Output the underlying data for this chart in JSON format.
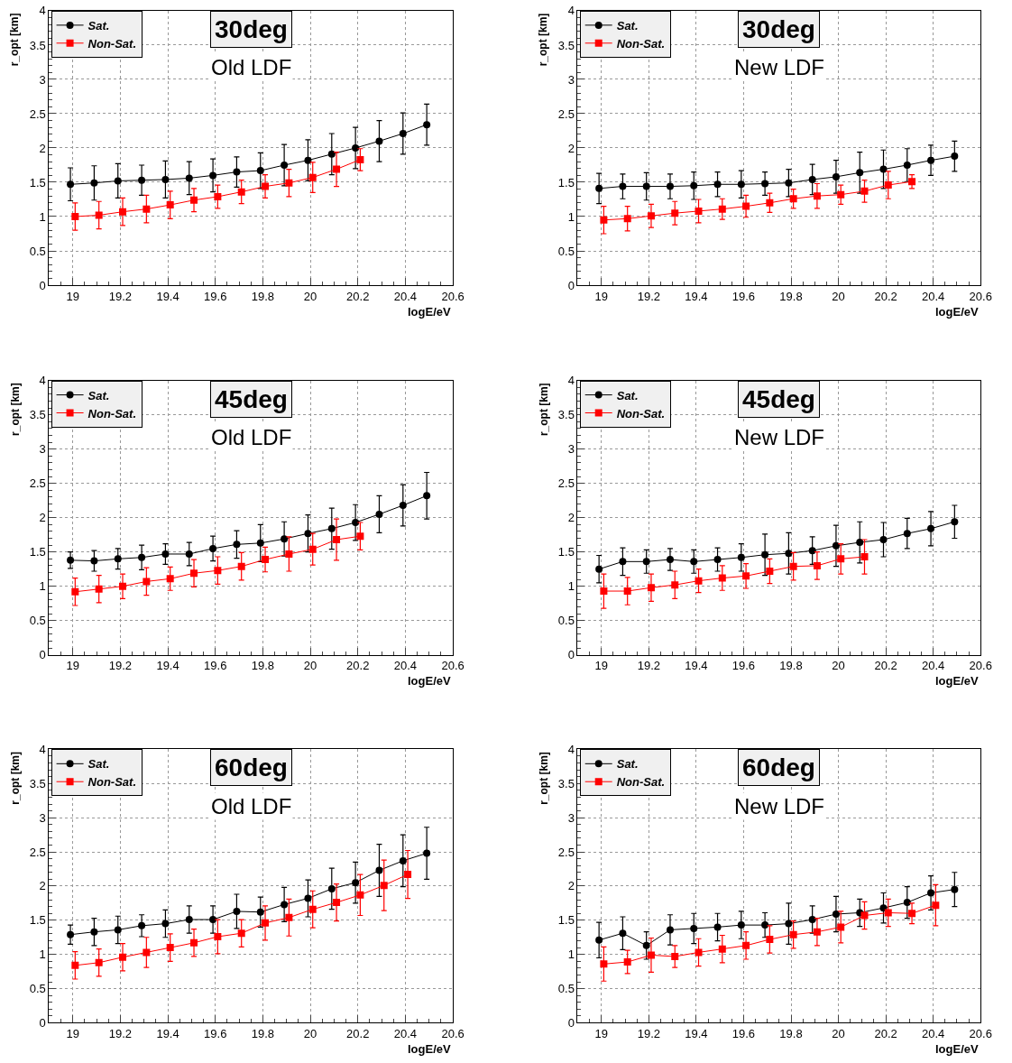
{
  "chart_data": [
    {
      "type": "line",
      "title": "30deg",
      "subtitle": "Old LDF",
      "xlabel": "logE/eV",
      "ylabel": "r_opt [km]",
      "xlim": [
        18.9,
        20.6
      ],
      "ylim": [
        0,
        4
      ],
      "xticks": [
        19,
        19.2,
        19.4,
        19.6,
        19.8,
        20,
        20.2,
        20.4,
        20.6
      ],
      "yticks": [
        0,
        0.5,
        1,
        1.5,
        2,
        2.5,
        3,
        3.5,
        4
      ],
      "grid": true,
      "legend": "top left",
      "series": [
        {
          "name": "Sat.",
          "color": "#000000",
          "marker": "circle",
          "x": [
            18.99,
            19.09,
            19.19,
            19.29,
            19.39,
            19.49,
            19.59,
            19.69,
            19.79,
            19.89,
            19.99,
            20.09,
            20.19,
            20.29,
            20.39,
            20.49
          ],
          "values": [
            1.47,
            1.49,
            1.52,
            1.53,
            1.54,
            1.56,
            1.6,
            1.65,
            1.67,
            1.75,
            1.82,
            1.91,
            2.0,
            2.1,
            2.21,
            2.34
          ],
          "errors": [
            0.24,
            0.25,
            0.25,
            0.22,
            0.27,
            0.24,
            0.24,
            0.22,
            0.26,
            0.3,
            0.3,
            0.3,
            0.3,
            0.3,
            0.3,
            0.3
          ]
        },
        {
          "name": "Non-Sat.",
          "color": "#ff0000",
          "marker": "square",
          "x": [
            19.01,
            19.11,
            19.21,
            19.31,
            19.41,
            19.51,
            19.61,
            19.71,
            19.81,
            19.91,
            20.01,
            20.11,
            20.21
          ],
          "values": [
            1.0,
            1.02,
            1.07,
            1.11,
            1.17,
            1.24,
            1.29,
            1.36,
            1.44,
            1.49,
            1.57,
            1.69,
            1.83
          ],
          "errors": [
            0.2,
            0.2,
            0.2,
            0.2,
            0.2,
            0.17,
            0.17,
            0.17,
            0.17,
            0.2,
            0.22,
            0.25,
            0.16
          ]
        }
      ]
    },
    {
      "type": "line",
      "title": "30deg",
      "subtitle": "New LDF",
      "xlabel": "logE/eV",
      "ylabel": "r_opt [km]",
      "xlim": [
        18.9,
        20.6
      ],
      "ylim": [
        0,
        4
      ],
      "xticks": [
        19,
        19.2,
        19.4,
        19.6,
        19.8,
        20,
        20.2,
        20.4,
        20.6
      ],
      "yticks": [
        0,
        0.5,
        1,
        1.5,
        2,
        2.5,
        3,
        3.5,
        4
      ],
      "grid": true,
      "legend": "top left",
      "series": [
        {
          "name": "Sat.",
          "color": "#000000",
          "marker": "circle",
          "x": [
            18.99,
            19.09,
            19.19,
            19.29,
            19.39,
            19.49,
            19.59,
            19.69,
            19.79,
            19.89,
            19.99,
            20.09,
            20.19,
            20.29,
            20.39,
            20.49
          ],
          "values": [
            1.41,
            1.44,
            1.44,
            1.44,
            1.45,
            1.47,
            1.47,
            1.48,
            1.49,
            1.54,
            1.58,
            1.64,
            1.69,
            1.75,
            1.82,
            1.88
          ],
          "errors": [
            0.22,
            0.18,
            0.2,
            0.18,
            0.2,
            0.18,
            0.2,
            0.17,
            0.2,
            0.22,
            0.24,
            0.3,
            0.28,
            0.24,
            0.22,
            0.22
          ]
        },
        {
          "name": "Non-Sat.",
          "color": "#ff0000",
          "marker": "square",
          "x": [
            19.01,
            19.11,
            19.21,
            19.31,
            19.41,
            19.51,
            19.61,
            19.71,
            19.81,
            19.91,
            20.01,
            20.11,
            20.21,
            20.31
          ],
          "values": [
            0.95,
            0.97,
            1.01,
            1.05,
            1.08,
            1.11,
            1.15,
            1.2,
            1.26,
            1.3,
            1.32,
            1.37,
            1.46,
            1.51
          ],
          "errors": [
            0.2,
            0.18,
            0.17,
            0.17,
            0.17,
            0.15,
            0.16,
            0.14,
            0.14,
            0.18,
            0.14,
            0.16,
            0.2,
            0.1
          ]
        }
      ]
    },
    {
      "type": "line",
      "title": "45deg",
      "subtitle": "Old LDF",
      "xlabel": "logE/eV",
      "ylabel": "r_opt [km]",
      "xlim": [
        18.9,
        20.6
      ],
      "ylim": [
        0,
        4
      ],
      "xticks": [
        19,
        19.2,
        19.4,
        19.6,
        19.8,
        20,
        20.2,
        20.4,
        20.6
      ],
      "yticks": [
        0,
        0.5,
        1,
        1.5,
        2,
        2.5,
        3,
        3.5,
        4
      ],
      "grid": true,
      "legend": "top left",
      "series": [
        {
          "name": "Sat.",
          "color": "#000000",
          "marker": "circle",
          "x": [
            18.99,
            19.09,
            19.19,
            19.29,
            19.39,
            19.49,
            19.59,
            19.69,
            19.79,
            19.89,
            19.99,
            20.09,
            20.19,
            20.29,
            20.39,
            20.49
          ],
          "values": [
            1.38,
            1.37,
            1.4,
            1.42,
            1.47,
            1.47,
            1.55,
            1.61,
            1.63,
            1.69,
            1.77,
            1.84,
            1.93,
            2.05,
            2.18,
            2.32
          ],
          "errors": [
            0.12,
            0.15,
            0.15,
            0.18,
            0.15,
            0.17,
            0.18,
            0.2,
            0.27,
            0.25,
            0.27,
            0.3,
            0.26,
            0.27,
            0.3,
            0.34
          ]
        },
        {
          "name": "Non-Sat.",
          "color": "#ff0000",
          "marker": "square",
          "x": [
            19.01,
            19.11,
            19.21,
            19.31,
            19.41,
            19.51,
            19.61,
            19.71,
            19.81,
            19.91,
            20.01,
            20.11,
            20.21
          ],
          "values": [
            0.92,
            0.96,
            1.0,
            1.07,
            1.11,
            1.19,
            1.23,
            1.29,
            1.39,
            1.47,
            1.54,
            1.68,
            1.73
          ],
          "errors": [
            0.2,
            0.2,
            0.18,
            0.2,
            0.17,
            0.2,
            0.2,
            0.2,
            0.18,
            0.25,
            0.23,
            0.3,
            0.2
          ]
        }
      ]
    },
    {
      "type": "line",
      "title": "45deg",
      "subtitle": "New LDF",
      "xlabel": "logE/eV",
      "ylabel": "r_opt [km]",
      "xlim": [
        18.9,
        20.6
      ],
      "ylim": [
        0,
        4
      ],
      "xticks": [
        19,
        19.2,
        19.4,
        19.6,
        19.8,
        20,
        20.2,
        20.4,
        20.6
      ],
      "yticks": [
        0,
        0.5,
        1,
        1.5,
        2,
        2.5,
        3,
        3.5,
        4
      ],
      "grid": true,
      "legend": "top left",
      "series": [
        {
          "name": "Sat.",
          "color": "#000000",
          "marker": "circle",
          "x": [
            18.99,
            19.09,
            19.19,
            19.29,
            19.39,
            19.49,
            19.59,
            19.69,
            19.79,
            19.89,
            19.99,
            20.09,
            20.19,
            20.29,
            20.39,
            20.49
          ],
          "values": [
            1.25,
            1.36,
            1.36,
            1.39,
            1.36,
            1.39,
            1.42,
            1.46,
            1.48,
            1.52,
            1.59,
            1.64,
            1.68,
            1.77,
            1.84,
            1.94
          ],
          "errors": [
            0.2,
            0.2,
            0.17,
            0.16,
            0.17,
            0.17,
            0.2,
            0.3,
            0.3,
            0.2,
            0.3,
            0.3,
            0.25,
            0.22,
            0.25,
            0.24
          ]
        },
        {
          "name": "Non-Sat.",
          "color": "#ff0000",
          "marker": "square",
          "x": [
            19.01,
            19.11,
            19.21,
            19.31,
            19.41,
            19.51,
            19.61,
            19.71,
            19.81,
            19.91,
            20.01,
            20.11
          ],
          "values": [
            0.93,
            0.93,
            0.98,
            1.02,
            1.08,
            1.12,
            1.15,
            1.22,
            1.29,
            1.3,
            1.4,
            1.43
          ],
          "errors": [
            0.25,
            0.2,
            0.2,
            0.2,
            0.17,
            0.18,
            0.18,
            0.18,
            0.2,
            0.2,
            0.22,
            0.25
          ]
        }
      ]
    },
    {
      "type": "line",
      "title": "60deg",
      "subtitle": "Old LDF",
      "xlabel": "logE/eV",
      "ylabel": "r_opt [km]",
      "xlim": [
        18.9,
        20.6
      ],
      "ylim": [
        0,
        4
      ],
      "xticks": [
        19,
        19.2,
        19.4,
        19.6,
        19.8,
        20,
        20.2,
        20.4,
        20.6
      ],
      "yticks": [
        0,
        0.5,
        1,
        1.5,
        2,
        2.5,
        3,
        3.5,
        4
      ],
      "grid": true,
      "legend": "top left",
      "series": [
        {
          "name": "Sat.",
          "color": "#000000",
          "marker": "circle",
          "x": [
            18.99,
            19.09,
            19.19,
            19.29,
            19.39,
            19.49,
            19.59,
            19.69,
            19.79,
            19.89,
            19.99,
            20.09,
            20.19,
            20.29,
            20.39,
            20.49
          ],
          "values": [
            1.29,
            1.33,
            1.36,
            1.42,
            1.45,
            1.51,
            1.51,
            1.63,
            1.62,
            1.73,
            1.82,
            1.96,
            2.05,
            2.23,
            2.37,
            2.48
          ],
          "errors": [
            0.14,
            0.2,
            0.2,
            0.16,
            0.2,
            0.2,
            0.2,
            0.25,
            0.22,
            0.25,
            0.27,
            0.3,
            0.3,
            0.38,
            0.38,
            0.38
          ]
        },
        {
          "name": "Non-Sat.",
          "color": "#ff0000",
          "marker": "square",
          "x": [
            19.01,
            19.11,
            19.21,
            19.31,
            19.41,
            19.51,
            19.61,
            19.71,
            19.81,
            19.91,
            20.01,
            20.11,
            20.21,
            20.31,
            20.41
          ],
          "values": [
            0.84,
            0.88,
            0.96,
            1.03,
            1.1,
            1.17,
            1.26,
            1.31,
            1.46,
            1.54,
            1.66,
            1.76,
            1.87,
            2.01,
            2.17
          ],
          "errors": [
            0.2,
            0.2,
            0.2,
            0.22,
            0.2,
            0.2,
            0.25,
            0.2,
            0.25,
            0.27,
            0.27,
            0.27,
            0.3,
            0.37,
            0.35
          ]
        }
      ]
    },
    {
      "type": "line",
      "title": "60deg",
      "subtitle": "New LDF",
      "xlabel": "logE/eV",
      "ylabel": "r_opt [km]",
      "xlim": [
        18.9,
        20.6
      ],
      "ylim": [
        0,
        4
      ],
      "xticks": [
        19,
        19.2,
        19.4,
        19.6,
        19.8,
        20,
        20.2,
        20.4,
        20.6
      ],
      "yticks": [
        0,
        0.5,
        1,
        1.5,
        2,
        2.5,
        3,
        3.5,
        4
      ],
      "grid": true,
      "legend": "top left",
      "series": [
        {
          "name": "Sat.",
          "color": "#000000",
          "marker": "circle",
          "x": [
            18.99,
            19.09,
            19.19,
            19.29,
            19.39,
            19.49,
            19.59,
            19.69,
            19.79,
            19.89,
            19.99,
            20.09,
            20.19,
            20.29,
            20.39,
            20.49
          ],
          "values": [
            1.21,
            1.31,
            1.13,
            1.36,
            1.38,
            1.4,
            1.43,
            1.43,
            1.45,
            1.51,
            1.59,
            1.61,
            1.68,
            1.76,
            1.9,
            1.95
          ],
          "errors": [
            0.26,
            0.24,
            0.2,
            0.22,
            0.22,
            0.2,
            0.2,
            0.18,
            0.3,
            0.2,
            0.26,
            0.2,
            0.22,
            0.23,
            0.25,
            0.25
          ]
        },
        {
          "name": "Non-Sat.",
          "color": "#ff0000",
          "marker": "square",
          "x": [
            19.01,
            19.11,
            19.21,
            19.31,
            19.41,
            19.51,
            19.61,
            19.71,
            19.81,
            19.91,
            20.01,
            20.11,
            20.21,
            20.31,
            20.41
          ],
          "values": [
            0.86,
            0.89,
            0.99,
            0.97,
            1.03,
            1.08,
            1.13,
            1.22,
            1.29,
            1.33,
            1.4,
            1.57,
            1.61,
            1.6,
            1.72
          ],
          "errors": [
            0.25,
            0.17,
            0.25,
            0.16,
            0.2,
            0.2,
            0.2,
            0.2,
            0.2,
            0.2,
            0.23,
            0.2,
            0.2,
            0.15,
            0.3
          ]
        }
      ]
    }
  ]
}
